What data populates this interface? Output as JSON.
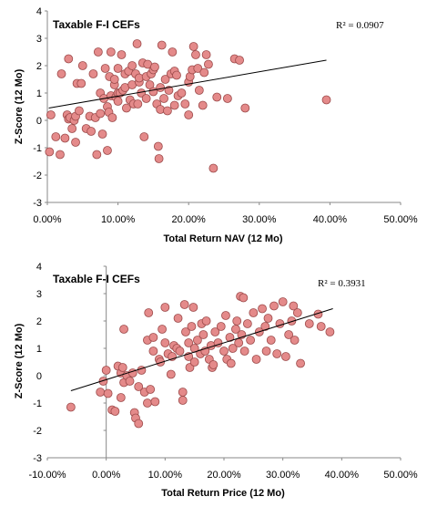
{
  "chart_data": [
    {
      "type": "scatter",
      "title": "Taxable F-I CEFs",
      "xlabel": "Total Return NAV (12 Mo)",
      "ylabel": "Z-Score (12 Mo)",
      "xlim": [
        0,
        0.5
      ],
      "ylim": [
        -3,
        4
      ],
      "x_ticks": [
        "0.00%",
        "10.00%",
        "20.00%",
        "30.00%",
        "40.00%",
        "50.00%"
      ],
      "y_ticks": [
        "4",
        "3",
        "2",
        "1",
        "0",
        "-1",
        "-2",
        "-3"
      ],
      "r2_label": "R² = 0.0907",
      "trendline": {
        "x": [
          0.002,
          0.395
        ],
        "y": [
          0.45,
          2.2
        ]
      },
      "point_color": "#e48a8a",
      "grid": false,
      "points": [
        [
          0.005,
          0.2
        ],
        [
          0.003,
          -1.15
        ],
        [
          0.012,
          -0.6
        ],
        [
          0.018,
          -1.25
        ],
        [
          0.02,
          1.7
        ],
        [
          0.025,
          -0.65
        ],
        [
          0.028,
          0.2
        ],
        [
          0.03,
          0.05
        ],
        [
          0.032,
          0.1
        ],
        [
          0.03,
          2.25
        ],
        [
          0.035,
          -0.3
        ],
        [
          0.038,
          0.0
        ],
        [
          0.04,
          0.15
        ],
        [
          0.04,
          -0.8
        ],
        [
          0.042,
          1.35
        ],
        [
          0.045,
          0.35
        ],
        [
          0.048,
          1.35
        ],
        [
          0.05,
          2.0
        ],
        [
          0.055,
          -0.3
        ],
        [
          0.06,
          0.15
        ],
        [
          0.062,
          -0.4
        ],
        [
          0.065,
          1.7
        ],
        [
          0.068,
          0.1
        ],
        [
          0.07,
          -1.25
        ],
        [
          0.072,
          2.5
        ],
        [
          0.075,
          1.0
        ],
        [
          0.075,
          0.25
        ],
        [
          0.078,
          -0.5
        ],
        [
          0.08,
          0.8
        ],
        [
          0.082,
          1.9
        ],
        [
          0.085,
          -1.1
        ],
        [
          0.085,
          0.5
        ],
        [
          0.087,
          0.3
        ],
        [
          0.088,
          1.6
        ],
        [
          0.09,
          0.9
        ],
        [
          0.09,
          2.5
        ],
        [
          0.092,
          0.1
        ],
        [
          0.095,
          1.3
        ],
        [
          0.095,
          1.5
        ],
        [
          0.097,
          0.85
        ],
        [
          0.1,
          1.0
        ],
        [
          0.1,
          1.9
        ],
        [
          0.1,
          0.7
        ],
        [
          0.103,
          1.0
        ],
        [
          0.105,
          2.4
        ],
        [
          0.107,
          1.1
        ],
        [
          0.11,
          1.7
        ],
        [
          0.11,
          1.2
        ],
        [
          0.112,
          0.45
        ],
        [
          0.115,
          1.8
        ],
        [
          0.117,
          0.75
        ],
        [
          0.12,
          1.3
        ],
        [
          0.12,
          2.0
        ],
        [
          0.122,
          0.6
        ],
        [
          0.125,
          1.7
        ],
        [
          0.127,
          2.8
        ],
        [
          0.128,
          0.6
        ],
        [
          0.13,
          1.4
        ],
        [
          0.13,
          1.55
        ],
        [
          0.133,
          1.0
        ],
        [
          0.135,
          2.1
        ],
        [
          0.137,
          -0.6
        ],
        [
          0.14,
          1.6
        ],
        [
          0.14,
          0.8
        ],
        [
          0.142,
          2.05
        ],
        [
          0.145,
          1.3
        ],
        [
          0.147,
          1.7
        ],
        [
          0.15,
          1.05
        ],
        [
          0.15,
          1.85
        ],
        [
          0.152,
          1.95
        ],
        [
          0.155,
          0.6
        ],
        [
          0.157,
          -0.95
        ],
        [
          0.158,
          -1.4
        ],
        [
          0.16,
          1.2
        ],
        [
          0.16,
          0.4
        ],
        [
          0.162,
          2.75
        ],
        [
          0.165,
          0.8
        ],
        [
          0.167,
          1.5
        ],
        [
          0.17,
          0.35
        ],
        [
          0.172,
          1.1
        ],
        [
          0.175,
          1.7
        ],
        [
          0.177,
          2.5
        ],
        [
          0.18,
          1.8
        ],
        [
          0.18,
          0.55
        ],
        [
          0.183,
          1.65
        ],
        [
          0.185,
          0.9
        ],
        [
          0.19,
          1.0
        ],
        [
          0.195,
          0.6
        ],
        [
          0.2,
          1.4
        ],
        [
          0.2,
          0.2
        ],
        [
          0.202,
          1.6
        ],
        [
          0.205,
          1.85
        ],
        [
          0.207,
          2.7
        ],
        [
          0.21,
          2.4
        ],
        [
          0.213,
          1.9
        ],
        [
          0.215,
          1.1
        ],
        [
          0.22,
          0.55
        ],
        [
          0.222,
          1.75
        ],
        [
          0.225,
          2.4
        ],
        [
          0.228,
          2.05
        ],
        [
          0.235,
          -1.75
        ],
        [
          0.24,
          0.85
        ],
        [
          0.255,
          0.8
        ],
        [
          0.265,
          2.25
        ],
        [
          0.272,
          2.2
        ],
        [
          0.28,
          0.45
        ],
        [
          0.395,
          0.75
        ]
      ]
    },
    {
      "type": "scatter",
      "title": "Taxable F-I CEFs",
      "xlabel": "Total Return Price (12 Mo)",
      "ylabel": "Z-Score (12 Mo)",
      "xlim": [
        -0.1,
        0.5
      ],
      "ylim": [
        -3,
        4
      ],
      "x_ticks": [
        "-10.00%",
        "0.00%",
        "10.00%",
        "20.00%",
        "30.00%",
        "40.00%",
        "50.00%"
      ],
      "y_ticks": [
        "4",
        "3",
        "2",
        "1",
        "0",
        "-1",
        "-2",
        "-3"
      ],
      "r2_label": "R² = 0.3931",
      "trendline": {
        "x": [
          -0.06,
          0.385
        ],
        "y": [
          -0.55,
          2.45
        ]
      },
      "point_color": "#e48a8a",
      "grid": false,
      "points": [
        [
          -0.06,
          -1.15
        ],
        [
          -0.01,
          -0.6
        ],
        [
          -0.005,
          -0.2
        ],
        [
          0.0,
          0.2
        ],
        [
          0.003,
          -0.65
        ],
        [
          0.01,
          -1.25
        ],
        [
          0.015,
          -1.3
        ],
        [
          0.02,
          0.35
        ],
        [
          0.025,
          -0.8
        ],
        [
          0.025,
          0.1
        ],
        [
          0.028,
          0.3
        ],
        [
          0.03,
          -0.25
        ],
        [
          0.03,
          1.7
        ],
        [
          0.035,
          0.0
        ],
        [
          0.04,
          -0.2
        ],
        [
          0.045,
          0.1
        ],
        [
          0.048,
          -1.35
        ],
        [
          0.05,
          -1.55
        ],
        [
          0.055,
          -0.4
        ],
        [
          0.055,
          -1.75
        ],
        [
          0.06,
          0.2
        ],
        [
          0.065,
          -0.6
        ],
        [
          0.07,
          -1.0
        ],
        [
          0.07,
          1.3
        ],
        [
          0.072,
          2.3
        ],
        [
          0.075,
          -0.5
        ],
        [
          0.08,
          0.9
        ],
        [
          0.08,
          1.4
        ],
        [
          0.083,
          -0.95
        ],
        [
          0.09,
          0.6
        ],
        [
          0.092,
          0.5
        ],
        [
          0.095,
          1.7
        ],
        [
          0.1,
          2.5
        ],
        [
          0.1,
          1.2
        ],
        [
          0.105,
          0.8
        ],
        [
          0.11,
          0.05
        ],
        [
          0.112,
          0.7
        ],
        [
          0.115,
          1.1
        ],
        [
          0.12,
          1.0
        ],
        [
          0.122,
          2.1
        ],
        [
          0.125,
          0.9
        ],
        [
          0.13,
          -0.6
        ],
        [
          0.13,
          -0.9
        ],
        [
          0.133,
          2.6
        ],
        [
          0.135,
          1.6
        ],
        [
          0.14,
          0.7
        ],
        [
          0.14,
          1.2
        ],
        [
          0.142,
          0.3
        ],
        [
          0.145,
          1.8
        ],
        [
          0.148,
          2.5
        ],
        [
          0.15,
          1.0
        ],
        [
          0.15,
          0.5
        ],
        [
          0.155,
          1.3
        ],
        [
          0.16,
          0.8
        ],
        [
          0.162,
          1.9
        ],
        [
          0.165,
          1.5
        ],
        [
          0.168,
          0.9
        ],
        [
          0.17,
          2.0
        ],
        [
          0.175,
          0.6
        ],
        [
          0.178,
          1.1
        ],
        [
          0.18,
          0.3
        ],
        [
          0.182,
          0.4
        ],
        [
          0.185,
          1.6
        ],
        [
          0.19,
          1.2
        ],
        [
          0.195,
          1.8
        ],
        [
          0.2,
          0.9
        ],
        [
          0.203,
          2.2
        ],
        [
          0.205,
          0.6
        ],
        [
          0.21,
          1.4
        ],
        [
          0.212,
          0.45
        ],
        [
          0.215,
          1.0
        ],
        [
          0.22,
          1.7
        ],
        [
          0.222,
          2.0
        ],
        [
          0.225,
          1.2
        ],
        [
          0.228,
          2.9
        ],
        [
          0.23,
          1.5
        ],
        [
          0.233,
          2.85
        ],
        [
          0.235,
          0.9
        ],
        [
          0.24,
          1.9
        ],
        [
          0.245,
          1.3
        ],
        [
          0.25,
          2.3
        ],
        [
          0.255,
          0.6
        ],
        [
          0.26,
          1.6
        ],
        [
          0.265,
          2.45
        ],
        [
          0.27,
          1.8
        ],
        [
          0.272,
          0.9
        ],
        [
          0.275,
          2.1
        ],
        [
          0.28,
          1.3
        ],
        [
          0.285,
          2.55
        ],
        [
          0.29,
          0.8
        ],
        [
          0.295,
          1.9
        ],
        [
          0.3,
          2.7
        ],
        [
          0.305,
          0.7
        ],
        [
          0.31,
          1.5
        ],
        [
          0.315,
          2.0
        ],
        [
          0.318,
          2.55
        ],
        [
          0.32,
          1.3
        ],
        [
          0.325,
          2.3
        ],
        [
          0.33,
          0.45
        ],
        [
          0.345,
          1.9
        ],
        [
          0.36,
          2.25
        ],
        [
          0.365,
          1.8
        ],
        [
          0.38,
          1.6
        ]
      ]
    }
  ]
}
